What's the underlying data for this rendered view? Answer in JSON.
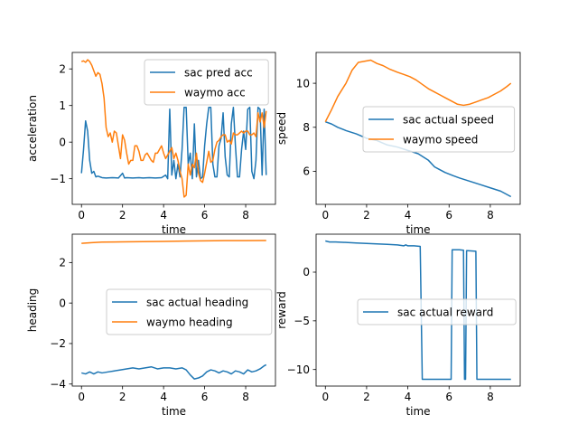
{
  "chart_data": [
    {
      "type": "line",
      "xlabel": "time",
      "ylabel": "acceleration",
      "xlim": [
        -0.45,
        9.45
      ],
      "ylim": [
        -1.7,
        2.45
      ],
      "xticks": [
        0,
        2,
        4,
        6,
        8
      ],
      "yticks": [
        -1,
        0,
        1,
        2
      ],
      "legend": "upper-right",
      "series": [
        {
          "name": "sac pred acc",
          "color": "#1f77b4",
          "x": [
            0,
            0.1,
            0.2,
            0.3,
            0.4,
            0.5,
            0.6,
            0.7,
            0.8,
            0.9,
            1.0,
            1.2,
            1.5,
            1.8,
            2.0,
            2.1,
            2.2,
            2.5,
            2.8,
            3.0,
            3.3,
            3.6,
            3.9,
            4.1,
            4.2,
            4.3,
            4.4,
            4.5,
            4.6,
            4.7,
            4.8,
            4.9,
            5.0,
            5.1,
            5.2,
            5.3,
            5.4,
            5.5,
            5.6,
            5.7,
            5.8,
            5.9,
            6.0,
            6.1,
            6.2,
            6.3,
            6.4,
            6.5,
            6.6,
            6.7,
            6.8,
            6.9,
            7.0,
            7.1,
            7.2,
            7.3,
            7.4,
            7.5,
            7.6,
            7.7,
            7.8,
            7.9,
            8.0,
            8.1,
            8.2,
            8.3,
            8.4,
            8.5,
            8.6,
            8.7,
            8.8,
            8.9,
            9.0
          ],
          "y": [
            -0.85,
            -0.2,
            0.58,
            0.3,
            -0.5,
            -0.85,
            -0.8,
            -0.95,
            -0.93,
            -0.95,
            -0.97,
            -0.98,
            -0.97,
            -0.98,
            -0.85,
            -0.98,
            -0.97,
            -0.98,
            -0.97,
            -0.98,
            -0.97,
            -0.98,
            -0.97,
            -0.9,
            -1.0,
            0.9,
            -0.9,
            -0.5,
            -1.0,
            -0.6,
            -0.95,
            -0.2,
            0.95,
            0.95,
            -0.6,
            -0.3,
            -1.0,
            0.5,
            -0.95,
            -0.5,
            -1.0,
            -0.95,
            -0.1,
            0.5,
            0.95,
            0.95,
            -0.6,
            -0.95,
            -0.95,
            -0.1,
            0.1,
            0.8,
            -0.4,
            -0.9,
            -0.95,
            0.5,
            0.95,
            -0.1,
            -0.95,
            -0.95,
            -0.2,
            0.3,
            -0.2,
            0.9,
            0.95,
            -0.8,
            -1.0,
            -0.5,
            0.95,
            0.9,
            -0.9,
            0.9,
            -0.9
          ]
        },
        {
          "name": "waymo acc",
          "color": "#ff7f0e",
          "x": [
            0,
            0.1,
            0.2,
            0.3,
            0.4,
            0.5,
            0.6,
            0.7,
            0.8,
            0.9,
            1.0,
            1.1,
            1.2,
            1.3,
            1.4,
            1.5,
            1.6,
            1.7,
            1.8,
            1.9,
            2.0,
            2.1,
            2.2,
            2.3,
            2.4,
            2.5,
            2.6,
            2.7,
            2.8,
            2.9,
            3.0,
            3.1,
            3.2,
            3.3,
            3.4,
            3.5,
            3.6,
            3.7,
            3.8,
            3.9,
            4.0,
            4.1,
            4.2,
            4.3,
            4.4,
            4.5,
            4.6,
            4.7,
            4.8,
            4.9,
            5.0,
            5.1,
            5.2,
            5.3,
            5.4,
            5.5,
            5.6,
            5.7,
            5.8,
            5.9,
            6.0,
            6.1,
            6.2,
            6.3,
            6.4,
            6.5,
            6.6,
            6.7,
            6.8,
            6.9,
            7.0,
            7.1,
            7.2,
            7.3,
            7.4,
            7.5,
            7.6,
            7.7,
            7.8,
            7.9,
            8.0,
            8.1,
            8.2,
            8.3,
            8.4,
            8.5,
            8.6,
            8.7,
            8.8,
            8.9,
            9.0
          ],
          "y": [
            2.2,
            2.22,
            2.18,
            2.25,
            2.2,
            2.1,
            1.95,
            1.8,
            1.9,
            1.85,
            1.6,
            1.2,
            0.4,
            0.15,
            0.25,
            0.0,
            0.3,
            0.25,
            -0.1,
            -0.45,
            0.2,
            0.05,
            -0.3,
            -0.6,
            -0.5,
            -0.5,
            -0.1,
            -0.1,
            -0.25,
            -0.5,
            -0.5,
            -0.35,
            -0.3,
            -0.4,
            -0.5,
            -0.55,
            -0.3,
            -0.3,
            -0.2,
            -0.1,
            -0.3,
            -0.45,
            -0.35,
            -0.25,
            -0.15,
            -0.45,
            -0.3,
            -0.5,
            -0.8,
            -1.0,
            -1.5,
            -1.45,
            -0.6,
            -0.9,
            -0.6,
            -0.7,
            -0.3,
            -0.85,
            -1.05,
            -1.1,
            -0.85,
            -0.55,
            -0.25,
            -0.55,
            -0.5,
            -0.2,
            0.0,
            0.05,
            0.15,
            0.2,
            0.2,
            0.0,
            0.05,
            -0.05,
            0.25,
            0.2,
            0.2,
            0.25,
            0.3,
            0.25,
            0.3,
            0.3,
            0.2,
            0.2,
            0.25,
            0.15,
            0.8,
            0.55,
            0.8,
            0.4,
            0.85
          ]
        }
      ]
    },
    {
      "type": "line",
      "xlabel": "time",
      "ylabel": "speed",
      "xlim": [
        -0.45,
        9.45
      ],
      "ylim": [
        4.5,
        11.4
      ],
      "xticks": [
        0,
        2,
        4,
        6,
        8
      ],
      "yticks": [
        6,
        8,
        10
      ],
      "legend": "center-right",
      "series": [
        {
          "name": "sac actual speed",
          "color": "#1f77b4",
          "x": [
            0,
            0.3,
            0.6,
            1.0,
            1.5,
            2.0,
            2.5,
            3.0,
            3.5,
            4.0,
            4.5,
            5.0,
            5.3,
            5.5,
            5.8,
            6.2,
            6.5,
            7.0,
            7.5,
            8.0,
            8.5,
            9.0
          ],
          "y": [
            8.25,
            8.15,
            8.0,
            7.85,
            7.7,
            7.5,
            7.4,
            7.2,
            7.1,
            6.95,
            6.8,
            6.5,
            6.2,
            6.1,
            5.95,
            5.8,
            5.7,
            5.55,
            5.4,
            5.25,
            5.1,
            4.85
          ]
        },
        {
          "name": "waymo speed",
          "color": "#ff7f0e",
          "x": [
            0,
            0.3,
            0.6,
            1.0,
            1.3,
            1.6,
            1.9,
            2.2,
            2.5,
            2.8,
            3.1,
            3.5,
            3.8,
            4.1,
            4.4,
            4.7,
            5.0,
            5.3,
            5.5,
            5.8,
            6.1,
            6.4,
            6.7,
            7.0,
            7.3,
            7.6,
            7.9,
            8.2,
            8.5,
            8.8,
            9.0
          ],
          "y": [
            8.25,
            8.8,
            9.4,
            10.0,
            10.6,
            10.95,
            11.0,
            11.05,
            10.9,
            10.8,
            10.65,
            10.5,
            10.4,
            10.3,
            10.15,
            9.95,
            9.75,
            9.6,
            9.5,
            9.35,
            9.2,
            9.05,
            9.0,
            9.05,
            9.15,
            9.25,
            9.35,
            9.5,
            9.65,
            9.85,
            10.0
          ]
        }
      ]
    },
    {
      "type": "line",
      "xlabel": "time",
      "ylabel": "heading",
      "xlim": [
        -0.45,
        9.45
      ],
      "ylim": [
        -4.1,
        3.4
      ],
      "xticks": [
        0,
        2,
        4,
        6,
        8
      ],
      "yticks": [
        -4,
        -2,
        0,
        2
      ],
      "legend": "center-right",
      "series": [
        {
          "name": "sac actual heading",
          "color": "#1f77b4",
          "x": [
            0,
            0.2,
            0.4,
            0.6,
            0.8,
            1.0,
            1.3,
            1.6,
            1.9,
            2.2,
            2.5,
            2.8,
            3.1,
            3.4,
            3.7,
            4.0,
            4.3,
            4.6,
            4.9,
            5.1,
            5.3,
            5.5,
            5.7,
            5.9,
            6.1,
            6.3,
            6.5,
            6.7,
            6.9,
            7.1,
            7.3,
            7.5,
            7.7,
            7.9,
            8.1,
            8.3,
            8.5,
            8.7,
            8.9,
            9.0
          ],
          "y": [
            -3.45,
            -3.5,
            -3.4,
            -3.5,
            -3.4,
            -3.45,
            -3.4,
            -3.35,
            -3.3,
            -3.25,
            -3.2,
            -3.25,
            -3.2,
            -3.15,
            -3.25,
            -3.2,
            -3.2,
            -3.25,
            -3.2,
            -3.3,
            -3.55,
            -3.75,
            -3.7,
            -3.6,
            -3.4,
            -3.3,
            -3.35,
            -3.45,
            -3.35,
            -3.4,
            -3.5,
            -3.35,
            -3.4,
            -3.5,
            -3.3,
            -3.4,
            -3.35,
            -3.25,
            -3.1,
            -3.05
          ]
        },
        {
          "name": "waymo heading",
          "color": "#ff7f0e",
          "x": [
            0,
            0.5,
            1.0,
            2.0,
            3.0,
            4.0,
            5.0,
            6.0,
            7.0,
            8.0,
            9.0
          ],
          "y": [
            2.95,
            2.98,
            3.01,
            3.02,
            3.03,
            3.04,
            3.06,
            3.07,
            3.08,
            3.08,
            3.09
          ]
        }
      ]
    },
    {
      "type": "line",
      "xlabel": "time",
      "ylabel": "reward",
      "xlim": [
        -0.45,
        9.45
      ],
      "ylim": [
        -11.7,
        3.9
      ],
      "xticks": [
        0,
        2,
        4,
        6,
        8
      ],
      "yticks": [
        -10,
        -5,
        0
      ],
      "legend": "center-right",
      "series": [
        {
          "name": "sac actual reward",
          "color": "#1f77b4",
          "x": [
            0,
            0.2,
            0.5,
            1.0,
            1.5,
            2.0,
            2.5,
            3.0,
            3.5,
            3.8,
            3.9,
            4.0,
            4.3,
            4.6,
            4.7,
            4.8,
            5.2,
            5.6,
            6.0,
            6.1,
            6.15,
            6.5,
            6.7,
            6.75,
            6.8,
            6.85,
            6.9,
            7.3,
            7.35,
            7.5,
            8.0,
            8.5,
            9.0
          ],
          "y": [
            3.2,
            3.1,
            3.1,
            3.05,
            3.0,
            2.95,
            2.9,
            2.85,
            2.8,
            2.7,
            2.8,
            2.7,
            2.7,
            2.65,
            -11,
            -11,
            -11,
            -11,
            -11,
            -11,
            2.3,
            2.3,
            2.25,
            -11,
            -11,
            2.2,
            2.2,
            2.15,
            -11,
            -11,
            -11,
            -11,
            -11
          ]
        }
      ]
    }
  ]
}
